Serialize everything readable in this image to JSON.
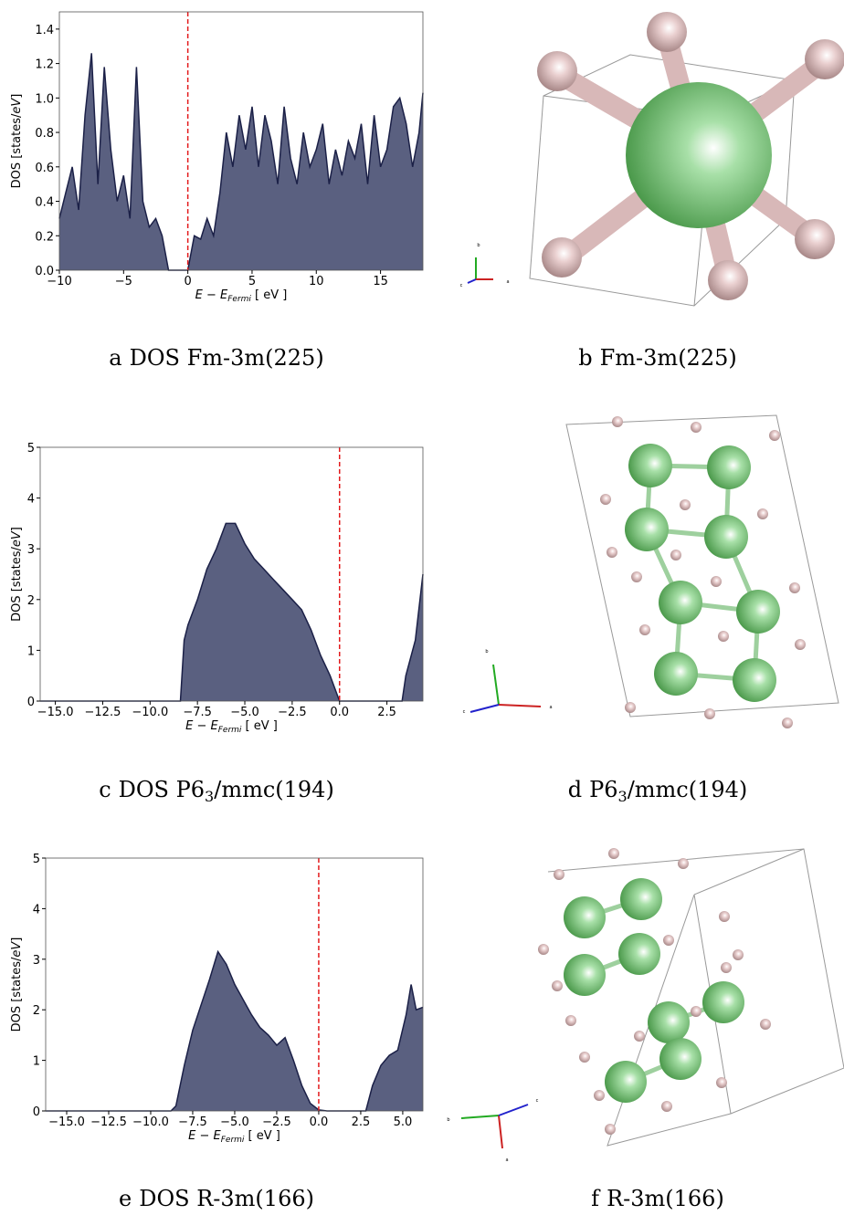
{
  "chart_data": [
    {
      "type": "area",
      "color": "#5a6080",
      "line_color": "#1b2047",
      "x": [
        -10,
        -9.5,
        -9,
        -8.5,
        -8,
        -7.5,
        -7,
        -6.5,
        -6,
        -5.5,
        -5,
        -4.5,
        -4,
        -3.5,
        -3,
        -2.5,
        -2,
        -1.5,
        -1,
        -0.5,
        0,
        0.5,
        1,
        1.5,
        2,
        2.5,
        3,
        3.5,
        4,
        4.5,
        5,
        5.5,
        6,
        6.5,
        7,
        7.5,
        8,
        8.5,
        9,
        9.5,
        10,
        10.5,
        11,
        11.5,
        12,
        12.5,
        13,
        13.5,
        14,
        14.5,
        15,
        15.5,
        16,
        16.5,
        17,
        17.5,
        18,
        18.3
      ],
      "values": [
        0.3,
        0.45,
        0.6,
        0.35,
        0.9,
        1.26,
        0.5,
        1.18,
        0.7,
        0.4,
        0.55,
        0.3,
        1.18,
        0.4,
        0.25,
        0.3,
        0.2,
        0,
        0,
        0,
        0,
        0.2,
        0.18,
        0.3,
        0.2,
        0.45,
        0.8,
        0.6,
        0.9,
        0.7,
        0.95,
        0.6,
        0.9,
        0.75,
        0.5,
        0.95,
        0.65,
        0.5,
        0.8,
        0.6,
        0.7,
        0.85,
        0.5,
        0.7,
        0.55,
        0.75,
        0.65,
        0.85,
        0.5,
        0.9,
        0.6,
        0.7,
        0.95,
        1.0,
        0.85,
        0.6,
        0.8,
        1.03
      ],
      "xlim": [
        -10,
        18.3
      ],
      "ylim": [
        0,
        1.5
      ],
      "xticks": [
        {
          "value": -10,
          "label": "−10"
        },
        {
          "value": -5,
          "label": "−5"
        },
        0,
        5,
        10,
        15
      ],
      "yticks": [
        {
          "value": 0,
          "label": "0.0"
        },
        {
          "value": 0.2,
          "label": "0.2"
        },
        {
          "value": 0.4,
          "label": "0.4"
        },
        {
          "value": 0.6,
          "label": "0.6"
        },
        {
          "value": 0.8,
          "label": "0.8"
        },
        {
          "value": 1.0,
          "label": "1.0"
        },
        {
          "value": 1.2,
          "label": "1.2"
        },
        {
          "value": 1.4,
          "label": "1.4"
        }
      ],
      "fermi_level": 0,
      "fermi_color": "#e31a1c",
      "xlabel": {
        "main": "E − E",
        "sub": "Fermi",
        "unit": " [ eV ]"
      },
      "ylabel": {
        "main": "DOS [states/",
        "italic": "eV",
        "end": "]"
      }
    },
    {
      "type": "area",
      "color": "#5a6080",
      "line_color": "#1b2047",
      "x": [
        -15.8,
        -8.4,
        -8.2,
        -8,
        -7.5,
        -7,
        -6.5,
        -6,
        -5.5,
        -5,
        -4.5,
        -4,
        -3.5,
        -3,
        -2.5,
        -2,
        -1.5,
        -1,
        -0.5,
        0,
        3.3,
        3.5,
        4,
        4.4
      ],
      "values": [
        0,
        0,
        1.2,
        1.5,
        2.0,
        2.6,
        3.0,
        3.5,
        3.5,
        3.1,
        2.8,
        2.6,
        2.4,
        2.2,
        2.0,
        1.8,
        1.4,
        0.9,
        0.5,
        0,
        0,
        0.5,
        1.2,
        2.5
      ],
      "xlim": [
        -15.8,
        4.4
      ],
      "ylim": [
        0,
        5
      ],
      "xticks": [
        {
          "value": -15,
          "label": "−15.0"
        },
        {
          "value": -12.5,
          "label": "−12.5"
        },
        {
          "value": -10,
          "label": "−10.0"
        },
        {
          "value": -7.5,
          "label": "−7.5"
        },
        {
          "value": -5,
          "label": "−5.0"
        },
        {
          "value": -2.5,
          "label": "−2.5"
        },
        {
          "value": 0,
          "label": "0.0"
        },
        2.5
      ],
      "yticks": [
        0,
        1,
        2,
        3,
        4,
        5
      ],
      "fermi_level": 0,
      "fermi_color": "#e31a1c",
      "xlabel": {
        "main": "E − E",
        "sub": "Fermi",
        "unit": " [ eV ]"
      },
      "ylabel": {
        "main": "DOS [states/",
        "italic": "eV",
        "end": "]"
      }
    },
    {
      "type": "area",
      "color": "#5a6080",
      "line_color": "#1b2047",
      "x": [
        -16.25,
        -8.8,
        -8.5,
        -8,
        -7.5,
        -7,
        -6.5,
        -6,
        -5.5,
        -5,
        -4.5,
        -4,
        -3.5,
        -3,
        -2.5,
        -2,
        -1.5,
        -1,
        -0.5,
        0,
        0.5,
        2.8,
        3.2,
        3.7,
        4.2,
        4.7,
        5.2,
        5.5,
        5.8,
        6.2
      ],
      "values": [
        0,
        0,
        0.1,
        0.9,
        1.6,
        2.1,
        2.6,
        3.15,
        2.9,
        2.5,
        2.2,
        1.9,
        1.65,
        1.5,
        1.3,
        1.45,
        1.0,
        0.5,
        0.15,
        0.02,
        0,
        0,
        0.5,
        0.9,
        1.1,
        1.2,
        1.9,
        2.5,
        2.0,
        2.05
      ],
      "xlim": [
        -16.25,
        6.2
      ],
      "ylim": [
        0,
        5
      ],
      "xticks": [
        {
          "value": -15,
          "label": "−15.0"
        },
        {
          "value": -12.5,
          "label": "−12.5"
        },
        {
          "value": -10,
          "label": "−10.0"
        },
        {
          "value": -7.5,
          "label": "−7.5"
        },
        {
          "value": -5,
          "label": "−5.0"
        },
        {
          "value": -2.5,
          "label": "−2.5"
        },
        {
          "value": 0,
          "label": "0.0"
        },
        2.5,
        {
          "value": 5,
          "label": "5.0"
        }
      ],
      "yticks": [
        0,
        1,
        2,
        3,
        4,
        5
      ],
      "fermi_level": 0,
      "fermi_color": "#e31a1c",
      "xlabel": {
        "main": "E − E",
        "sub": "Fermi",
        "unit": " [ eV ]"
      },
      "ylabel": {
        "main": "DOS [states/",
        "italic": "eV",
        "end": "]"
      }
    }
  ],
  "captions": [
    {
      "letter": "a",
      "text": "DOS Fm-3m(225)"
    },
    {
      "letter": "b",
      "text": "Fm-3m(225)"
    },
    {
      "letter": "c",
      "main": "DOS P6",
      "sub": "3",
      "end": "/mmc(194)"
    },
    {
      "letter": "d",
      "main": "P6",
      "sub": "3",
      "end": "/mmc(194)"
    },
    {
      "letter": "e",
      "text": "DOS R-3m(166)"
    },
    {
      "letter": "f",
      "text": "R-3m(166)"
    }
  ],
  "axis_labels": [
    "a",
    "b",
    "c"
  ]
}
